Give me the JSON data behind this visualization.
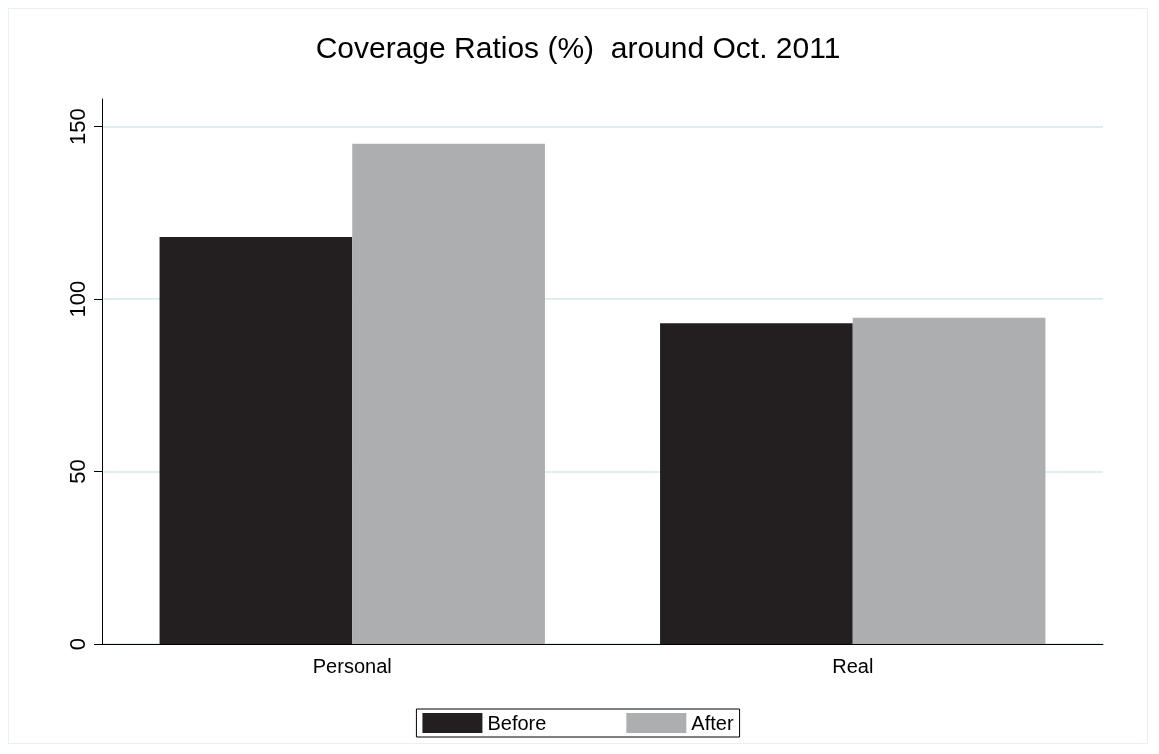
{
  "chart_data": {
    "type": "bar",
    "title": "Coverage Ratios (%)  around Oct. 2011",
    "categories": [
      "Personal",
      "Real"
    ],
    "series": [
      {
        "name": "Before",
        "color": "#231f20",
        "values": [
          118,
          93
        ]
      },
      {
        "name": "After",
        "color": "#adaeb0",
        "values": [
          145,
          94.6
        ]
      }
    ],
    "ylim": [
      0,
      158
    ],
    "yticks": [
      0,
      50,
      100,
      150
    ],
    "grid": "y",
    "legend": "bottom"
  }
}
